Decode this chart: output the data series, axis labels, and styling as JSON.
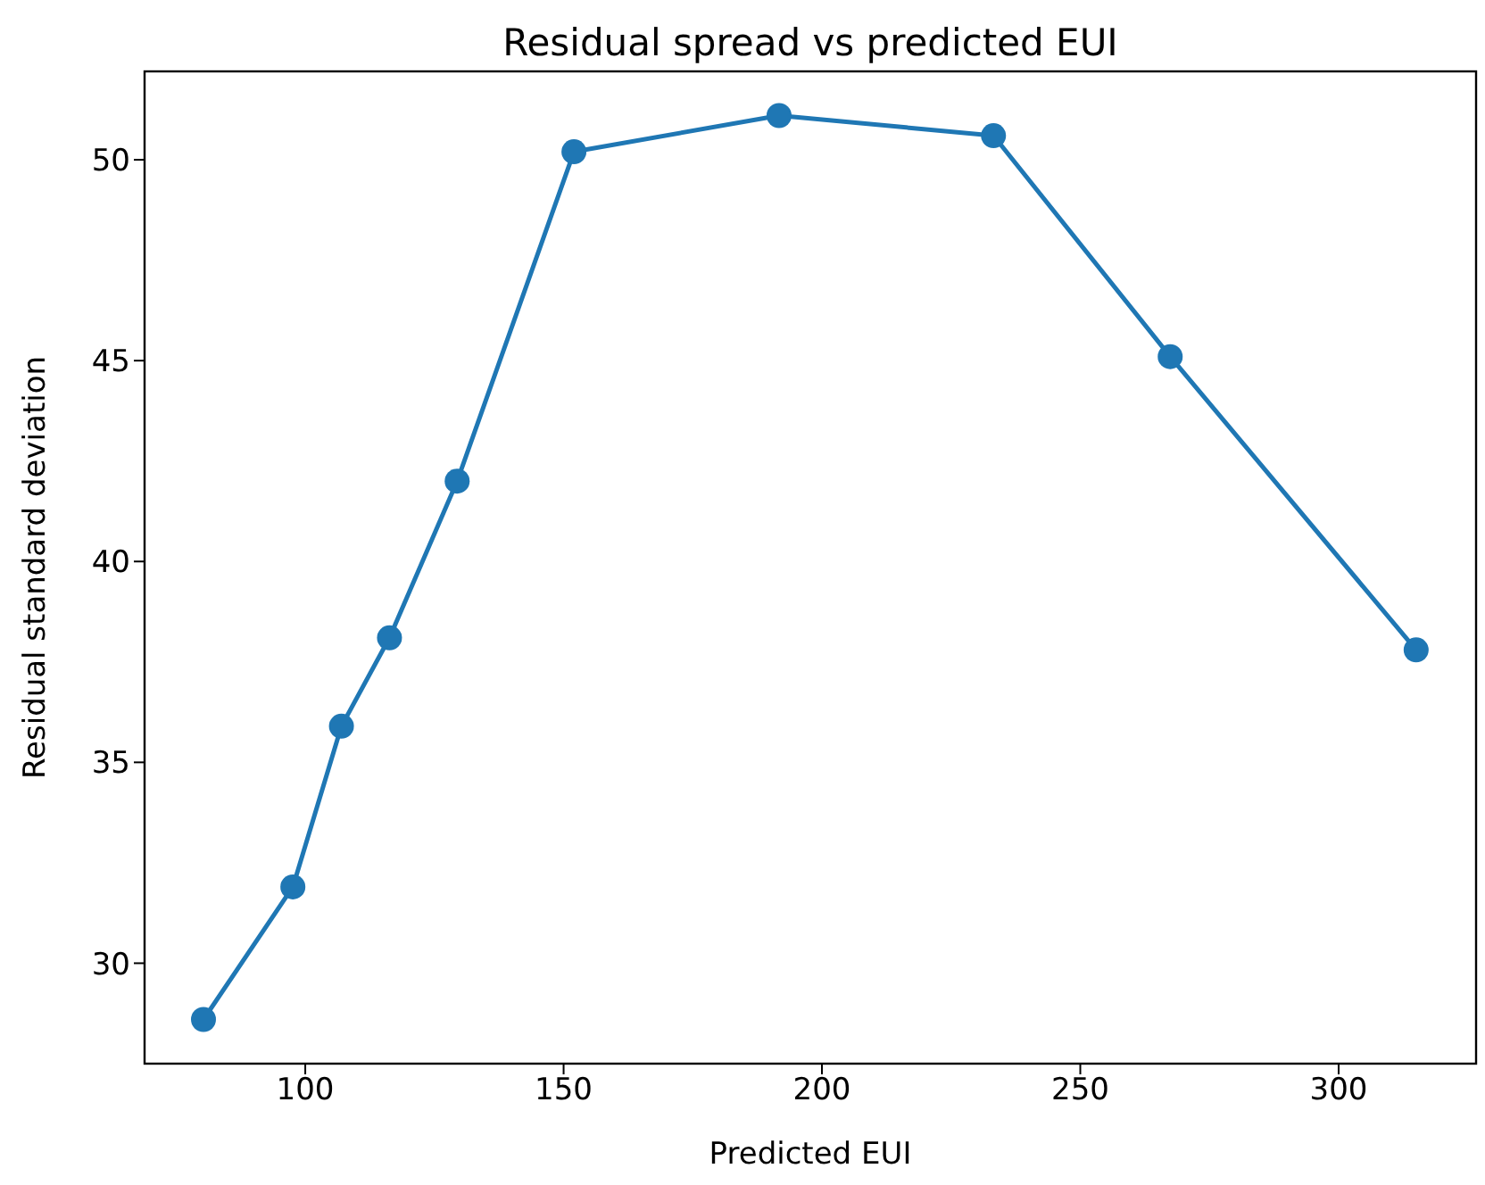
{
  "chart_data": {
    "type": "line",
    "title": "Residual spread vs predicted EUI",
    "xlabel": "Predicted EUI",
    "ylabel": "Residual standard deviation",
    "x": [
      80.3,
      97.6,
      107,
      116.3,
      129.4,
      152,
      191.7,
      233.2,
      267.4,
      315
    ],
    "series": [
      {
        "color": "#1f77b4",
        "values": [
          28.6,
          31.9,
          35.9,
          38.1,
          42,
          50.2,
          51.1,
          50.6,
          45.1,
          37.8
        ]
      }
    ],
    "xlim": [
      68.9,
      326.6
    ],
    "xticks": [
      100,
      150,
      200,
      250,
      300
    ],
    "ylim": [
      27.5,
      52.2
    ],
    "yticks": [
      30,
      35,
      40,
      45,
      50
    ],
    "grid": false,
    "legend": false,
    "marker": "circle",
    "line_style": "solid"
  }
}
